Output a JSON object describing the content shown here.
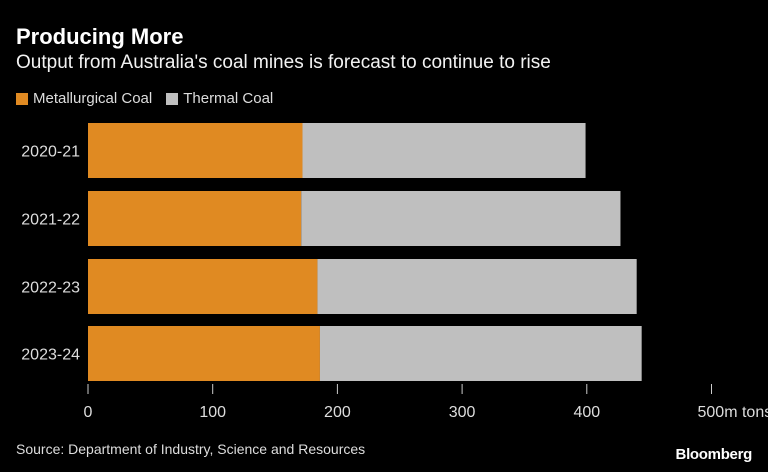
{
  "chart_data": {
    "type": "bar",
    "orientation": "horizontal",
    "stacked": true,
    "title": "Producing More",
    "subtitle": "Output from Australia's coal mines is forecast to continue to rise",
    "categories": [
      "2020-21",
      "2021-22",
      "2022-23",
      "2023-24"
    ],
    "series": [
      {
        "name": "Metallurgical Coal",
        "color": "#e08a22",
        "values": [
          172,
          171,
          184,
          186
        ]
      },
      {
        "name": "Thermal Coal",
        "color": "#bfbfbf",
        "values": [
          227,
          256,
          256,
          258
        ]
      }
    ],
    "xlim": [
      0,
      500
    ],
    "xticks": [
      "0",
      "100",
      "200",
      "300",
      "400",
      "500m tons"
    ],
    "xtick_values": [
      0,
      100,
      200,
      300,
      400,
      500
    ],
    "grid": false,
    "legend_placement": "top-left",
    "source": "Source: Department of Industry, Science and Resources",
    "brand": "Bloomberg"
  }
}
